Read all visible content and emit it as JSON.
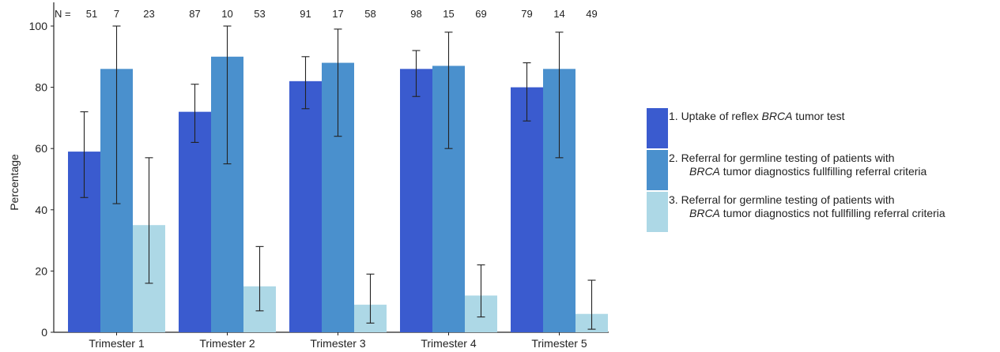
{
  "chart_data": {
    "type": "bar",
    "categories": [
      "Trimester 1",
      "Trimester 2",
      "Trimester 3",
      "Trimester 4",
      "Trimester 5"
    ],
    "ylabel": "Percentage",
    "xlabel": "",
    "ylim": [
      0,
      100
    ],
    "yticks": [
      "0",
      "20",
      "40",
      "60",
      "80",
      "100"
    ],
    "n_prefix": "N = ",
    "series": [
      {
        "name": "1. Uptake of reflex BRCA tumor test",
        "color": "#3A5BCF",
        "values": [
          59,
          72,
          82,
          86,
          80
        ],
        "err_low": [
          44,
          62,
          73,
          77,
          69
        ],
        "err_high": [
          72,
          81,
          90,
          92,
          88
        ],
        "n": [
          "51",
          "87",
          "91",
          "98",
          "79"
        ]
      },
      {
        "name": "2. Referral for germline testing of patients with BRCA tumor diagnostics fullfilling referral criteria",
        "color": "#4A90CD",
        "values": [
          86,
          90,
          88,
          87,
          86
        ],
        "err_low": [
          42,
          55,
          64,
          60,
          57
        ],
        "err_high": [
          100,
          100,
          99,
          98,
          98
        ],
        "n": [
          "7",
          "10",
          "17",
          "15",
          "14"
        ]
      },
      {
        "name": "3. Referral for germline testing of patients with BRCA tumor diagnostics not fullfilling referral criteria",
        "color": "#ADD8E6",
        "values": [
          35,
          15,
          9,
          12,
          6
        ],
        "err_low": [
          16,
          7,
          3,
          5,
          1
        ],
        "err_high": [
          57,
          28,
          19,
          22,
          17
        ],
        "n": [
          "23",
          "53",
          "58",
          "69",
          "49"
        ]
      }
    ],
    "legend_placement": "right",
    "grid": false
  },
  "legend": {
    "items": [
      {
        "lines": [
          [
            "1. Uptake of reflex ",
            "BRCA",
            " tumor test"
          ]
        ]
      },
      {
        "lines": [
          [
            "2. Referral for germline testing of patients with"
          ],
          [
            "",
            "BRCA",
            " tumor diagnostics fullfilling referral criteria"
          ]
        ]
      },
      {
        "lines": [
          [
            "3. Referral for germline testing of patients with"
          ],
          [
            "",
            "BRCA",
            " tumor diagnostics not fullfilling referral criteria"
          ]
        ]
      }
    ]
  }
}
